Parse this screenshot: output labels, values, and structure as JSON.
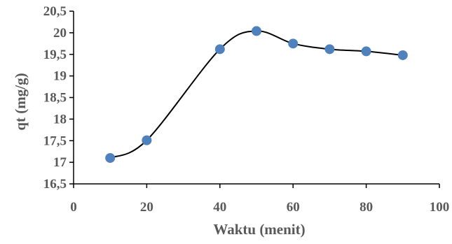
{
  "chart_data": {
    "type": "scatter",
    "xlabel": "Waktu (menit)",
    "ylabel": "qt (mg/g)",
    "xlim": [
      0,
      100
    ],
    "ylim": [
      16.5,
      20.5
    ],
    "x_ticks": [
      "0",
      "20",
      "40",
      "60",
      "80",
      "100"
    ],
    "y_ticks": [
      "16,5",
      "17",
      "17,5",
      "18",
      "18,5",
      "19",
      "19,5",
      "20",
      "20,5"
    ],
    "grid": false,
    "legend": "none",
    "line_style": "smooth",
    "series": [
      {
        "x": [
          10,
          20,
          40,
          50,
          60,
          70,
          80,
          90
        ],
        "y": [
          17.1,
          17.51,
          19.62,
          20.04,
          19.75,
          19.62,
          19.57,
          19.48
        ]
      }
    ],
    "colors": {
      "marker": "#4f81bd",
      "line": "#000000",
      "text": "#595959"
    }
  }
}
